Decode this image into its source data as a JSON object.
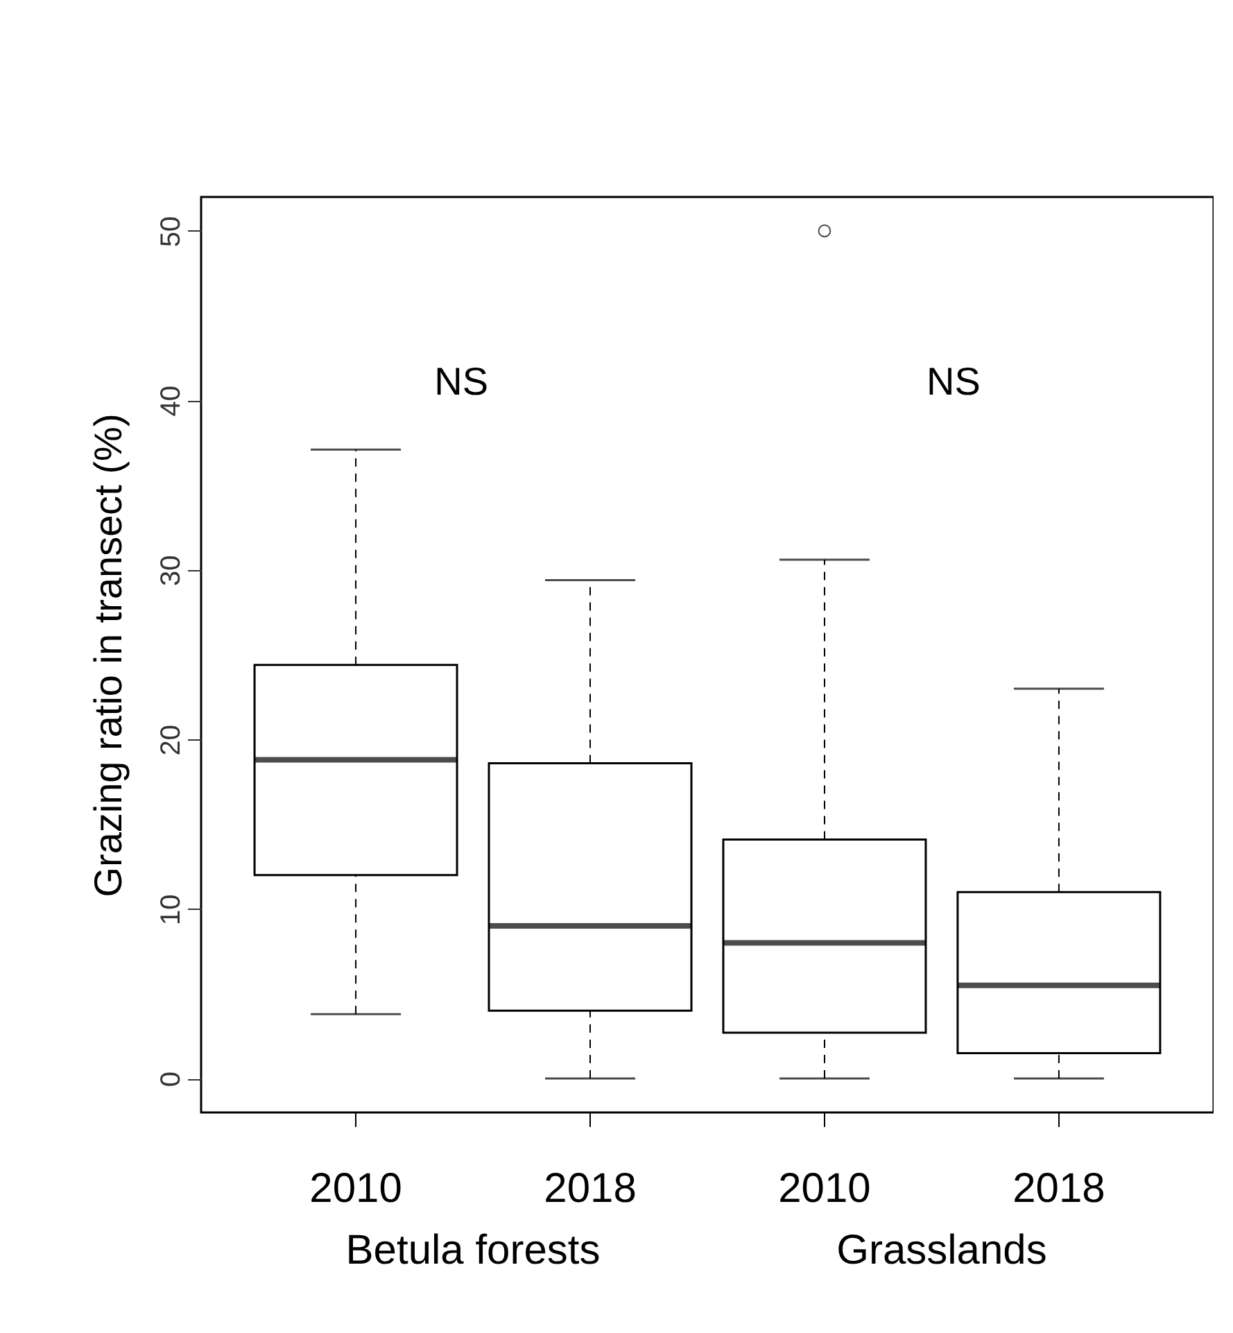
{
  "chart_data": {
    "type": "box",
    "ylabel": "Grazing ratio in transect (%)",
    "categories": [
      "2010",
      "2018",
      "2010",
      "2018"
    ],
    "boxes": [
      {
        "low": 3.8,
        "q1": 12.0,
        "median": 18.8,
        "q3": 24.4,
        "high": 37.1
      },
      {
        "low": 0,
        "q1": 4.0,
        "median": 9.0,
        "q3": 18.6,
        "high": 29.4
      },
      {
        "low": 0,
        "q1": 2.7,
        "median": 8.0,
        "q3": 14.1,
        "high": 30.6,
        "outliers": [
          50
        ]
      },
      {
        "low": 0,
        "q1": 1.5,
        "median": 5.5,
        "q3": 11.0,
        "high": 23.0
      }
    ],
    "ylim": [
      -2,
      52
    ],
    "yticks": [
      0,
      10,
      20,
      30,
      40,
      50
    ],
    "grid": false,
    "annotations": [
      "NS",
      "NS",
      "Betula forests",
      "Grasslands"
    ]
  }
}
